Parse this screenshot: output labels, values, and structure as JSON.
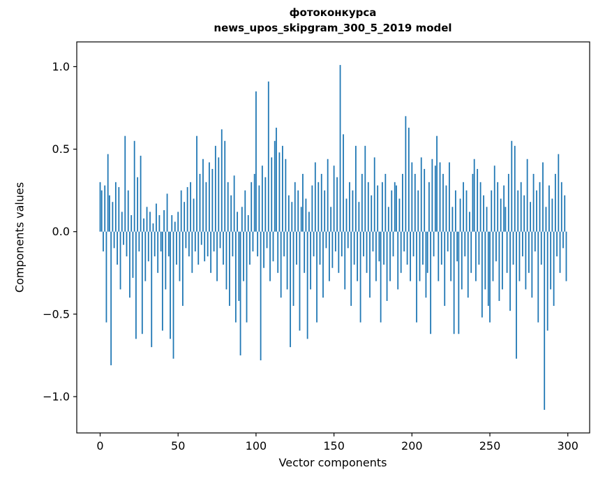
{
  "figure": {
    "title_line1": "фотоконкурса",
    "title_line2": "news_upos_skipgram_300_5_2019 model"
  },
  "chart_data": {
    "type": "bar",
    "title": "фотоконкурса\nnews_upos_skipgram_300_5_2019 model",
    "xlabel": "Vector components",
    "ylabel": "Components values",
    "bar_color": "#1f77b4",
    "axis_color": "#000000",
    "xlim": [
      -15,
      314
    ],
    "ylim": [
      -1.22,
      1.15
    ],
    "xticks": [
      0,
      50,
      100,
      150,
      200,
      250,
      300
    ],
    "yticks": [
      -1.0,
      -0.5,
      0.0,
      0.5,
      1.0
    ],
    "x_start": 0,
    "values": [
      0.3,
      0.25,
      -0.12,
      0.28,
      -0.55,
      0.47,
      0.22,
      -0.81,
      0.18,
      -0.1,
      0.3,
      -0.2,
      0.27,
      -0.35,
      0.12,
      -0.08,
      0.58,
      -0.15,
      0.25,
      -0.4,
      0.1,
      -0.28,
      0.55,
      -0.65,
      0.33,
      -0.12,
      0.46,
      -0.62,
      0.08,
      -0.3,
      0.15,
      -0.18,
      0.12,
      -0.7,
      0.05,
      -0.15,
      0.17,
      -0.25,
      0.1,
      -0.12,
      -0.6,
      0.13,
      -0.35,
      0.23,
      -0.15,
      -0.65,
      0.1,
      -0.77,
      0.06,
      -0.2,
      0.12,
      -0.3,
      0.25,
      -0.45,
      0.18,
      -0.1,
      0.27,
      -0.15,
      0.3,
      -0.25,
      0.2,
      -0.12,
      0.58,
      -0.2,
      0.35,
      -0.08,
      0.44,
      -0.18,
      0.3,
      -0.15,
      0.42,
      -0.25,
      0.38,
      -0.12,
      0.52,
      -0.3,
      0.45,
      -0.1,
      0.62,
      -0.2,
      0.55,
      -0.35,
      0.3,
      -0.45,
      0.22,
      -0.15,
      0.34,
      -0.55,
      0.12,
      -0.42,
      -0.75,
      0.15,
      -0.3,
      0.25,
      -0.55,
      0.1,
      -0.2,
      0.3,
      -0.12,
      0.35,
      0.85,
      -0.15,
      0.28,
      -0.78,
      0.4,
      -0.22,
      0.33,
      -0.1,
      0.91,
      -0.3,
      0.45,
      -0.18,
      0.55,
      0.63,
      -0.25,
      0.48,
      -0.4,
      0.52,
      -0.15,
      0.44,
      -0.35,
      0.22,
      -0.7,
      0.18,
      -0.45,
      0.3,
      -0.2,
      0.25,
      -0.6,
      0.15,
      0.35,
      -0.25,
      0.2,
      -0.65,
      0.12,
      -0.35,
      0.28,
      -0.15,
      0.42,
      -0.55,
      0.3,
      -0.2,
      0.35,
      -0.4,
      0.25,
      -0.1,
      0.44,
      -0.3,
      0.15,
      -0.22,
      0.4,
      -0.12,
      0.33,
      -0.25,
      1.01,
      -0.15,
      0.59,
      -0.35,
      0.2,
      -0.1,
      0.3,
      -0.45,
      0.25,
      -0.2,
      0.52,
      -0.3,
      0.18,
      -0.55,
      0.35,
      -0.15,
      0.52,
      -0.25,
      0.3,
      -0.4,
      0.22,
      -0.12,
      0.45,
      -0.3,
      0.28,
      -0.18,
      -0.55,
      0.3,
      -0.2,
      0.35,
      -0.42,
      0.15,
      -0.3,
      0.25,
      -0.15,
      0.3,
      0.28,
      -0.35,
      0.2,
      -0.25,
      0.35,
      -0.12,
      0.7,
      -0.2,
      0.63,
      -0.3,
      0.42,
      -0.15,
      0.35,
      -0.55,
      0.25,
      -0.3,
      0.45,
      -0.2,
      0.38,
      -0.4,
      -0.25,
      0.3,
      -0.62,
      0.44,
      -0.15,
      0.4,
      0.58,
      -0.3,
      0.42,
      -0.2,
      0.35,
      -0.45,
      0.28,
      -0.12,
      0.42,
      -0.3,
      0.15,
      -0.62,
      0.25,
      -0.18,
      -0.62,
      0.2,
      -0.35,
      0.3,
      -0.15,
      0.25,
      -0.4,
      0.12,
      -0.25,
      0.35,
      0.44,
      -0.3,
      0.38,
      -0.2,
      0.3,
      -0.52,
      0.22,
      -0.35,
      0.15,
      -0.45,
      -0.55,
      0.25,
      -0.3,
      0.4,
      -0.18,
      0.3,
      -0.42,
      0.2,
      -0.35,
      0.28,
      0.15,
      -0.25,
      0.35,
      -0.48,
      0.55,
      -0.2,
      0.52,
      -0.77,
      0.25,
      -0.3,
      0.3,
      -0.15,
      0.22,
      -0.35,
      0.44,
      -0.25,
      0.18,
      -0.4,
      0.35,
      -0.12,
      0.25,
      -0.55,
      0.3,
      -0.2,
      0.42,
      -1.08,
      0.15,
      -0.6,
      0.28,
      -0.35,
      0.2,
      -0.45,
      0.35,
      -0.15,
      0.47,
      -0.25,
      0.3,
      -0.1,
      0.22,
      -0.3
    ]
  }
}
